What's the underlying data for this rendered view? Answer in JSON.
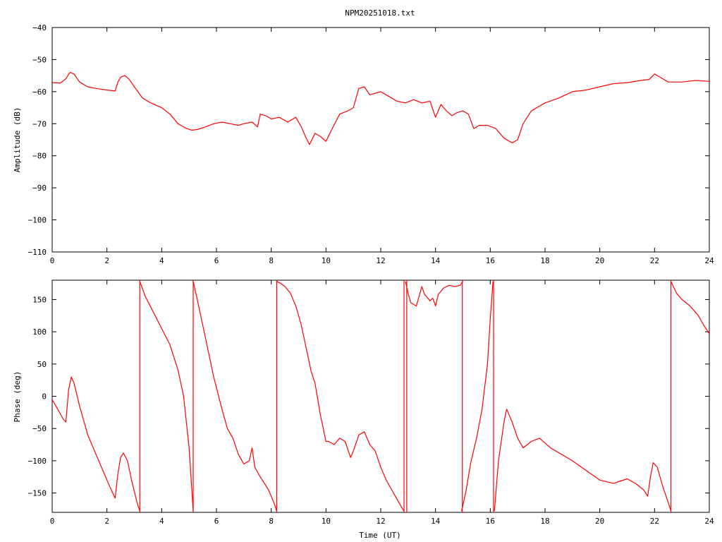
{
  "title": "NPM20251018.txt",
  "colors": {
    "series": "#ff0000",
    "axis": "#000000",
    "background": "#ffffff"
  },
  "chart_data": [
    {
      "type": "line",
      "title": "NPM20251018.txt",
      "xlabel": "",
      "ylabel": "Amplitude (dB)",
      "xlim": [
        0,
        24
      ],
      "ylim": [
        -110,
        -40
      ],
      "xticks": [
        0,
        2,
        4,
        6,
        8,
        10,
        12,
        14,
        16,
        18,
        20,
        22,
        24
      ],
      "yticks": [
        -110,
        -100,
        -90,
        -80,
        -70,
        -60,
        -50,
        -40
      ],
      "ytick_labels": [
        "−110",
        "−100",
        "−90",
        "−80",
        "−70",
        "−60",
        "−50",
        "−40"
      ],
      "grid": false,
      "series": [
        {
          "x": [
            0,
            0.3,
            0.5,
            0.65,
            0.8,
            1.0,
            1.3,
            1.6,
            2.0,
            2.3,
            2.4,
            2.5,
            2.65,
            2.8,
            3.0,
            3.3,
            3.6,
            4.0,
            4.3,
            4.6,
            4.9,
            5.1,
            5.3,
            5.6,
            5.9,
            6.2,
            6.5,
            6.8,
            7.0,
            7.3,
            7.5,
            7.6,
            7.8,
            8.0,
            8.3,
            8.6,
            8.9,
            9.1,
            9.25,
            9.4,
            9.6,
            9.8,
            10.0,
            10.2,
            10.5,
            10.8,
            11.0,
            11.2,
            11.4,
            11.6,
            11.8,
            12.0,
            12.3,
            12.6,
            12.9,
            13.2,
            13.5,
            13.8,
            14.0,
            14.2,
            14.4,
            14.6,
            14.8,
            15.0,
            15.2,
            15.4,
            15.6,
            15.9,
            16.2,
            16.5,
            16.8,
            17.0,
            17.2,
            17.5,
            18.0,
            18.5,
            19.0,
            19.5,
            20.0,
            20.5,
            21.0,
            21.5,
            21.8,
            22.0,
            22.2,
            22.5,
            23.0,
            23.5,
            24.0
          ],
          "y": [
            -57.2,
            -57.3,
            -56,
            -54,
            -54.5,
            -57,
            -58.5,
            -59,
            -59.5,
            -59.8,
            -57,
            -55.5,
            -55,
            -56,
            -58.5,
            -62,
            -63.5,
            -65,
            -67,
            -70,
            -71.5,
            -72,
            -71.8,
            -71,
            -70,
            -69.5,
            -70,
            -70.5,
            -70,
            -69.5,
            -71,
            -67,
            -67.5,
            -68.5,
            -68,
            -69.5,
            -68,
            -71,
            -74,
            -76.5,
            -73,
            -74,
            -75.5,
            -72,
            -67,
            -66,
            -65,
            -59,
            -58.5,
            -61,
            -60.5,
            -60,
            -61.5,
            -63,
            -63.5,
            -62.5,
            -63.5,
            -63,
            -68,
            -64,
            -66,
            -67.5,
            -66.5,
            -66,
            -67,
            -71.5,
            -70.5,
            -70.5,
            -71.5,
            -74.5,
            -76,
            -75,
            -70,
            -66,
            -63.5,
            -62,
            -60,
            -59.5,
            -58.5,
            -57.5,
            -57.2,
            -56.5,
            -56.2,
            -54.5,
            -55.5,
            -57,
            -57,
            -56.5,
            -56.8
          ]
        }
      ]
    },
    {
      "type": "line",
      "title": "",
      "xlabel": "Time (UT)",
      "ylabel": "Phase (deg)",
      "xlim": [
        0,
        24
      ],
      "ylim": [
        -180,
        180
      ],
      "xticks": [
        0,
        2,
        4,
        6,
        8,
        10,
        12,
        14,
        16,
        18,
        20,
        22,
        24
      ],
      "yticks": [
        -150,
        -100,
        -50,
        0,
        50,
        100,
        150
      ],
      "ytick_labels": [
        "−150",
        "−100",
        "−50",
        "0",
        "50",
        "100",
        "150"
      ],
      "grid": false,
      "series": [
        {
          "segments": [
            {
              "x": [
                0,
                0.2,
                0.4,
                0.5,
                0.6,
                0.7,
                0.8,
                1.0,
                1.3,
                1.7,
                2.1,
                2.3,
                2.4,
                2.5,
                2.6,
                2.75,
                2.9,
                3.1,
                3.2
              ],
              "y": [
                -5,
                -20,
                -35,
                -40,
                10,
                30,
                20,
                -15,
                -60,
                -100,
                -140,
                -158,
                -120,
                -95,
                -88,
                -100,
                -130,
                -165,
                -178
              ]
            },
            {
              "x": [
                3.2,
                3.4,
                3.7,
                4.0,
                4.3,
                4.6,
                4.8,
                5.0,
                5.15
              ],
              "y": [
                178,
                155,
                130,
                105,
                80,
                40,
                0,
                -80,
                -178
              ]
            },
            {
              "x": [
                5.15,
                5.3,
                5.6,
                5.9,
                6.2,
                6.4,
                6.6,
                6.8,
                7.0,
                7.2,
                7.3,
                7.4,
                7.6,
                7.9,
                8.1,
                8.2
              ],
              "y": [
                178,
                150,
                90,
                30,
                -20,
                -50,
                -65,
                -90,
                -105,
                -100,
                -80,
                -110,
                -125,
                -145,
                -165,
                -178
              ]
            },
            {
              "x": [
                8.2,
                8.35,
                8.5,
                8.7,
                8.9,
                9.1,
                9.3,
                9.45,
                9.6,
                9.8,
                9.9,
                10.0,
                10.1,
                10.3,
                10.5,
                10.7,
                10.9,
                11.0,
                11.2,
                11.4,
                11.6,
                11.8,
                12.0,
                12.2,
                12.4,
                12.6,
                12.8,
                12.85
              ],
              "y": [
                178,
                175,
                170,
                160,
                140,
                110,
                70,
                40,
                20,
                -30,
                -50,
                -70,
                -70,
                -75,
                -65,
                -70,
                -95,
                -85,
                -60,
                -55,
                -75,
                -85,
                -110,
                -130,
                -145,
                -160,
                -175,
                -178
              ]
            },
            {
              "x": [
                12.9,
                13.0,
                13.1,
                13.3,
                13.4,
                13.5,
                13.6,
                13.8,
                13.9,
                14.0,
                14.1,
                14.3,
                14.5,
                14.7,
                14.9,
                15.0
              ],
              "y": [
                178,
                160,
                145,
                140,
                155,
                170,
                158,
                148,
                152,
                140,
                158,
                168,
                172,
                170,
                172,
                178
              ]
            },
            {
              "x": [
                14.95,
                15.1,
                15.3,
                15.5,
                15.7,
                15.9,
                16.0,
                16.1
              ],
              "y": [
                -178,
                -150,
                -100,
                -65,
                -20,
                50,
                120,
                178
              ]
            },
            {
              "x": [
                16.15,
                16.3,
                16.5,
                16.6,
                16.8,
                17.0,
                17.2,
                17.5,
                17.8,
                18.2,
                18.6,
                19.0,
                19.5,
                20.0,
                20.5,
                21.0,
                21.3,
                21.6,
                21.75,
                21.85,
                21.95,
                22.1,
                22.3,
                22.5,
                22.6
              ],
              "y": [
                -178,
                -100,
                -40,
                -20,
                -40,
                -65,
                -80,
                -70,
                -65,
                -80,
                -90,
                -100,
                -115,
                -130,
                -135,
                -128,
                -135,
                -145,
                -155,
                -125,
                -103,
                -110,
                -140,
                -165,
                -178
              ]
            },
            {
              "x": [
                22.6,
                22.8,
                23.0,
                23.3,
                23.6,
                23.8,
                24.0
              ],
              "y": [
                178,
                160,
                150,
                140,
                125,
                110,
                97
              ]
            }
          ],
          "wraps": [
            3.2,
            5.15,
            8.2,
            12.85,
            12.95,
            14.98,
            16.12,
            22.6
          ]
        }
      ]
    }
  ]
}
